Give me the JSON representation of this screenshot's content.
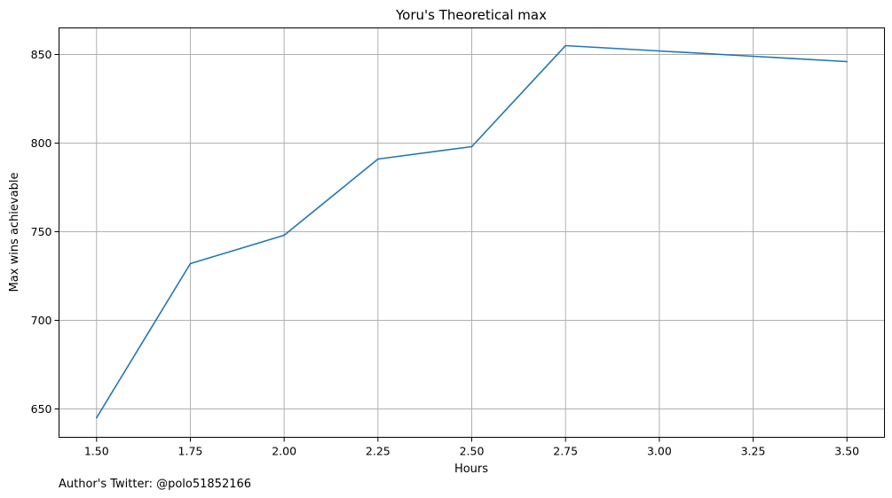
{
  "chart_data": {
    "type": "line",
    "title": "Yoru's Theoretical max",
    "xlabel": "Hours",
    "ylabel": "Max wins achievable",
    "xlim": [
      1.4,
      3.6
    ],
    "ylim": [
      634,
      865
    ],
    "xticks": [
      1.5,
      1.75,
      2.0,
      2.25,
      2.5,
      2.75,
      3.0,
      3.25,
      3.5
    ],
    "xtick_labels": [
      "1.50",
      "1.75",
      "2.00",
      "2.25",
      "2.50",
      "2.75",
      "3.00",
      "3.25",
      "3.50"
    ],
    "yticks": [
      650,
      700,
      750,
      800,
      850
    ],
    "ytick_labels": [
      "650",
      "700",
      "750",
      "800",
      "850"
    ],
    "grid": true,
    "series": [
      {
        "name": "Max wins",
        "color": "#1f77b4",
        "x": [
          1.5,
          1.75,
          2.0,
          2.25,
          2.5,
          2.75,
          3.0,
          3.25,
          3.5
        ],
        "values": [
          645,
          732,
          748,
          791,
          798,
          855,
          852,
          849,
          846
        ]
      }
    ]
  },
  "footer": {
    "note": "Author's Twitter: @polo51852166"
  }
}
